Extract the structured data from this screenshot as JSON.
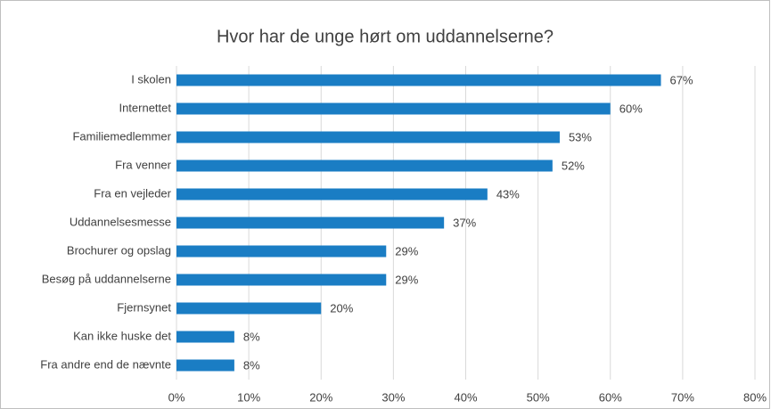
{
  "chart_data": {
    "type": "bar",
    "orientation": "horizontal",
    "title": "Hvor har de unge hørt om uddannelserne?",
    "categories": [
      "I skolen",
      "Internettet",
      "Familiemedlemmer",
      "Fra venner",
      "Fra en vejleder",
      "Uddannelsesmesse",
      "Brochurer og opslag",
      "Besøg på uddannelserne",
      "Fjernsynet",
      "Kan ikke huske det",
      "Fra andre end de nævnte"
    ],
    "values": [
      67,
      60,
      53,
      52,
      43,
      37,
      29,
      29,
      20,
      8,
      8
    ],
    "value_labels": [
      "67%",
      "60%",
      "53%",
      "52%",
      "43%",
      "37%",
      "29%",
      "29%",
      "20%",
      "8%",
      "8%"
    ],
    "color": "#1a7dc4",
    "xlim": [
      0,
      80
    ],
    "xticks": [
      {
        "value": 0,
        "label": "0%"
      },
      {
        "value": 10,
        "label": "10%"
      },
      {
        "value": 20,
        "label": "20%"
      },
      {
        "value": 30,
        "label": "30%"
      },
      {
        "value": 40,
        "label": "40%"
      },
      {
        "value": 50,
        "label": "50%"
      },
      {
        "value": 60,
        "label": "60%"
      },
      {
        "value": 70,
        "label": "70%"
      },
      {
        "value": 80,
        "label": "80%"
      }
    ],
    "grid": true
  }
}
